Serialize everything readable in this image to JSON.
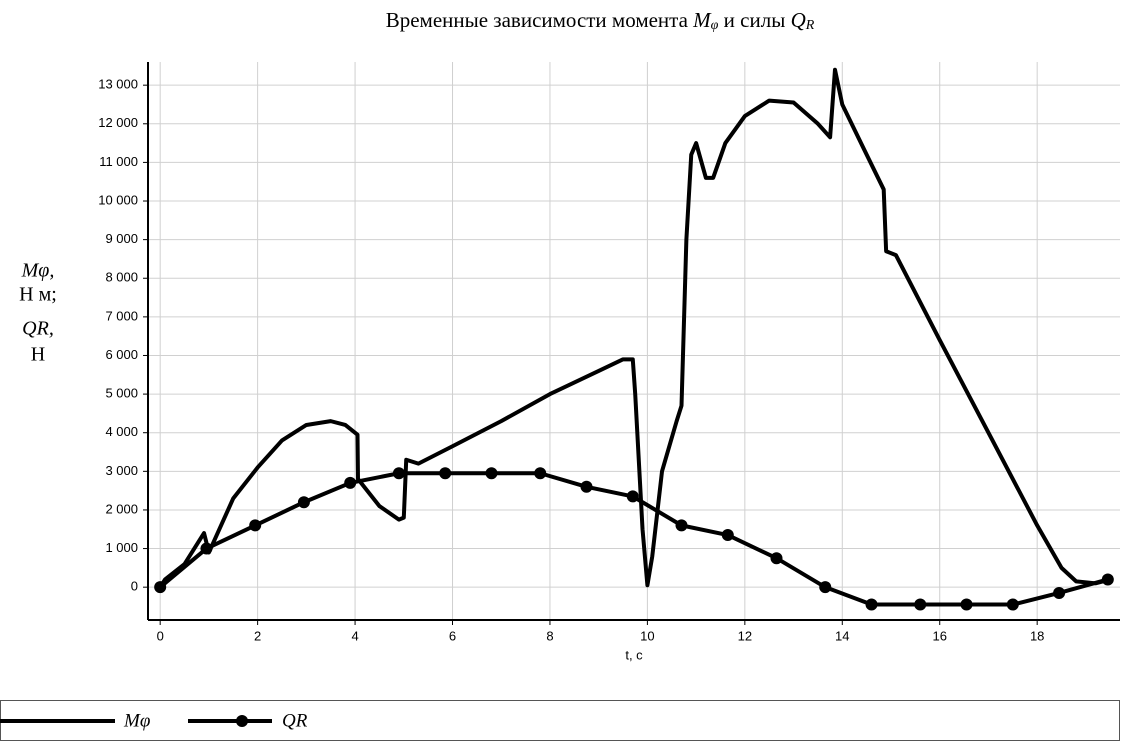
{
  "chart_data": {
    "type": "line",
    "title": [
      "Временные зависимости момента ",
      "M",
      "φ",
      " и силы ",
      "Q",
      "R"
    ],
    "ylabel": [
      "Mφ,",
      "Н м;",
      "QR,",
      "Н"
    ],
    "xlabel": "t, c",
    "xlim": [
      -0.25,
      19.7
    ],
    "ylim": [
      -850,
      13600
    ],
    "xticks": [
      0,
      2,
      4,
      6,
      8,
      10,
      12,
      14,
      16,
      18
    ],
    "yticks": [
      0,
      {
        "value": 1000,
        "label": "1 000"
      },
      {
        "value": 2000,
        "label": "2 000"
      },
      {
        "value": 3000,
        "label": "3 000"
      },
      {
        "value": 4000,
        "label": "4 000"
      },
      {
        "value": 5000,
        "label": "5 000"
      },
      {
        "value": 6000,
        "label": "6 000"
      },
      {
        "value": 7000,
        "label": "7 000"
      },
      {
        "value": 8000,
        "label": "8 000"
      },
      {
        "value": 9000,
        "label": "9 000"
      },
      {
        "value": 10000,
        "label": "10 000"
      },
      {
        "value": 11000,
        "label": "11 000"
      },
      {
        "value": 12000,
        "label": "12 000"
      },
      {
        "value": 13000,
        "label": "13 000"
      }
    ],
    "grid": true,
    "series": [
      {
        "name": "Mφ",
        "color": "#000000",
        "marker": false,
        "x": [
          0,
          0.1,
          0.5,
          0.9,
          1.0,
          1.5,
          2,
          2.5,
          3,
          3.5,
          3.8,
          4.05,
          4.06,
          4.5,
          4.9,
          5.0,
          5.05,
          5.3,
          6,
          7,
          8,
          9,
          9.5,
          9.7,
          9.75,
          9.9,
          10.0,
          10.1,
          10.3,
          10.6,
          10.7,
          10.8,
          10.9,
          11.0,
          11.2,
          11.35,
          11.6,
          12,
          12.5,
          13,
          13.5,
          13.75,
          13.85,
          14.0,
          14.5,
          14.85,
          14.9,
          15.1,
          16,
          17,
          18,
          18.5,
          18.8,
          19.2,
          19.5
        ],
        "values": [
          0,
          200,
          600,
          1400,
          900,
          2300,
          3100,
          3800,
          4200,
          4300,
          4200,
          3950,
          2800,
          2100,
          1750,
          1800,
          3300,
          3200,
          3650,
          4300,
          5000,
          5600,
          5900,
          5900,
          5000,
          1500,
          50,
          800,
          3000,
          4300,
          4700,
          9000,
          11200,
          11500,
          10600,
          10600,
          11500,
          12200,
          12600,
          12550,
          12000,
          11650,
          13400,
          12500,
          11200,
          10300,
          8700,
          8600,
          6400,
          4000,
          1600,
          500,
          150,
          100,
          200
        ]
      },
      {
        "name": "QR",
        "color": "#000000",
        "marker": true,
        "x": [
          0,
          0.95,
          1.95,
          2.95,
          3.9,
          4.9,
          5.85,
          6.8,
          7.8,
          8.75,
          9.7,
          10.7,
          11.65,
          12.65,
          13.65,
          14.6,
          15.6,
          16.55,
          17.5,
          18.45,
          19.45
        ],
        "values": [
          0,
          1000,
          1600,
          2200,
          2700,
          2950,
          2950,
          2950,
          2950,
          2600,
          2350,
          1600,
          1350,
          750,
          0,
          -450,
          -450,
          -450,
          -450,
          -150,
          200
        ]
      }
    ]
  }
}
